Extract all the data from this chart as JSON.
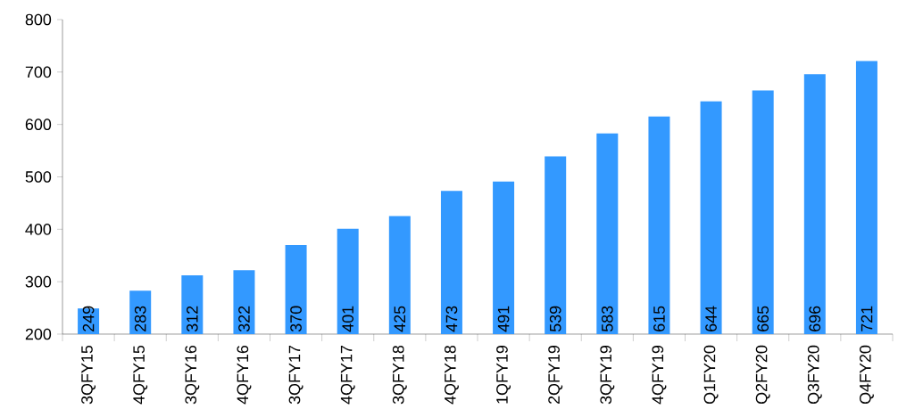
{
  "chart_data": {
    "type": "bar",
    "categories": [
      "3QFY15",
      "4QFY15",
      "3QFY16",
      "4QFY16",
      "3QFY17",
      "4QFY17",
      "3QFY18",
      "4QFY18",
      "1QFY19",
      "2QFY19",
      "3QFY19",
      "4QFY19",
      "Q1FY20",
      "Q2FY20",
      "Q3FY20",
      "Q4FY20"
    ],
    "values": [
      249,
      283,
      312,
      322,
      370,
      401,
      425,
      473,
      491,
      539,
      583,
      615,
      644,
      665,
      696,
      721
    ],
    "color": "#3399ff",
    "ylim": [
      200,
      800
    ],
    "yticks": [
      200,
      300,
      400,
      500,
      600,
      700,
      800
    ],
    "data_labels": true
  }
}
